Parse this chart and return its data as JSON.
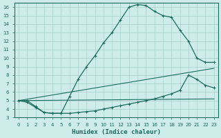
{
  "xlabel": "Humidex (Indice chaleur)",
  "xlim": [
    -0.5,
    23.5
  ],
  "ylim": [
    3,
    16.5
  ],
  "xticks": [
    0,
    1,
    2,
    3,
    4,
    5,
    6,
    7,
    8,
    9,
    10,
    11,
    12,
    13,
    14,
    15,
    16,
    17,
    18,
    19,
    20,
    21,
    22,
    23
  ],
  "yticks": [
    3,
    4,
    5,
    6,
    7,
    8,
    9,
    10,
    11,
    12,
    13,
    14,
    15,
    16
  ],
  "bg_color": "#ceecea",
  "grid_color": "#a8ceca",
  "line_color": "#1a6b5e",
  "curve_upper_x": [
    0,
    1,
    2,
    3,
    4,
    5,
    6,
    7,
    8,
    9,
    10,
    11,
    12,
    13,
    14,
    15,
    16,
    17,
    18,
    19,
    20,
    21,
    22,
    23
  ],
  "curve_upper_y": [
    5.0,
    5.0,
    4.3,
    3.6,
    3.5,
    3.5,
    5.5,
    7.5,
    9.0,
    10.3,
    11.8,
    13.0,
    14.5,
    16.0,
    16.3,
    16.2,
    15.5,
    15.0,
    14.8,
    13.3,
    12.0,
    10.0,
    9.5,
    9.5
  ],
  "curve_lower_x": [
    0,
    1,
    2,
    3,
    4,
    5,
    6,
    7,
    8,
    9,
    10,
    11,
    12,
    13,
    14,
    15,
    16,
    17,
    18,
    19,
    20,
    21,
    22,
    23
  ],
  "curve_lower_y": [
    5.0,
    4.8,
    4.2,
    3.6,
    3.5,
    3.5,
    3.5,
    3.6,
    3.7,
    3.8,
    4.0,
    4.2,
    4.4,
    4.6,
    4.8,
    5.0,
    5.2,
    5.5,
    5.8,
    6.2,
    8.0,
    7.5,
    6.8,
    6.5
  ],
  "line1_x": [
    0,
    23
  ],
  "line1_y": [
    5.0,
    8.8
  ],
  "line2_x": [
    0,
    23
  ],
  "line2_y": [
    5.0,
    5.2
  ]
}
